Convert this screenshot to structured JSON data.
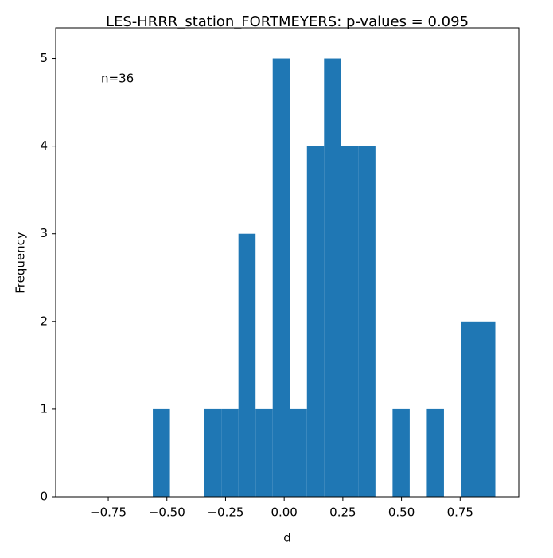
{
  "chart_data": {
    "type": "histogram",
    "title": "LES-HRRR_station_FORTMEYERS: p-values = 0.095",
    "x_label": "d",
    "y_label": "Frequency",
    "annotation": "n=36",
    "bins": [
      -0.56,
      -0.487,
      -0.414,
      -0.341,
      -0.268,
      -0.195,
      -0.122,
      -0.049,
      0.024,
      0.097,
      0.17,
      0.243,
      0.316,
      0.389,
      0.462,
      0.535,
      0.608,
      0.681,
      0.754,
      0.827,
      0.9
    ],
    "values": [
      1,
      0,
      0,
      1,
      1,
      3,
      1,
      5,
      1,
      4,
      5,
      4,
      4,
      0,
      1,
      0,
      1,
      0,
      2,
      2
    ],
    "color": "#1f77b4",
    "xlim": [
      -0.974,
      1.0
    ],
    "xticks": [
      {
        "value": -0.75,
        "label": "−0.75"
      },
      {
        "value": -0.5,
        "label": "−0.50"
      },
      {
        "value": -0.25,
        "label": "−0.25"
      },
      {
        "value": 0,
        "label": "0.00"
      },
      {
        "value": 0.25,
        "label": "0.25"
      },
      {
        "value": 0.5,
        "label": "0.50"
      },
      {
        "value": 0.75,
        "label": "0.75"
      }
    ],
    "ylim": [
      0,
      5.35
    ],
    "yticks": [
      0,
      1,
      2,
      3,
      4,
      5
    ]
  }
}
